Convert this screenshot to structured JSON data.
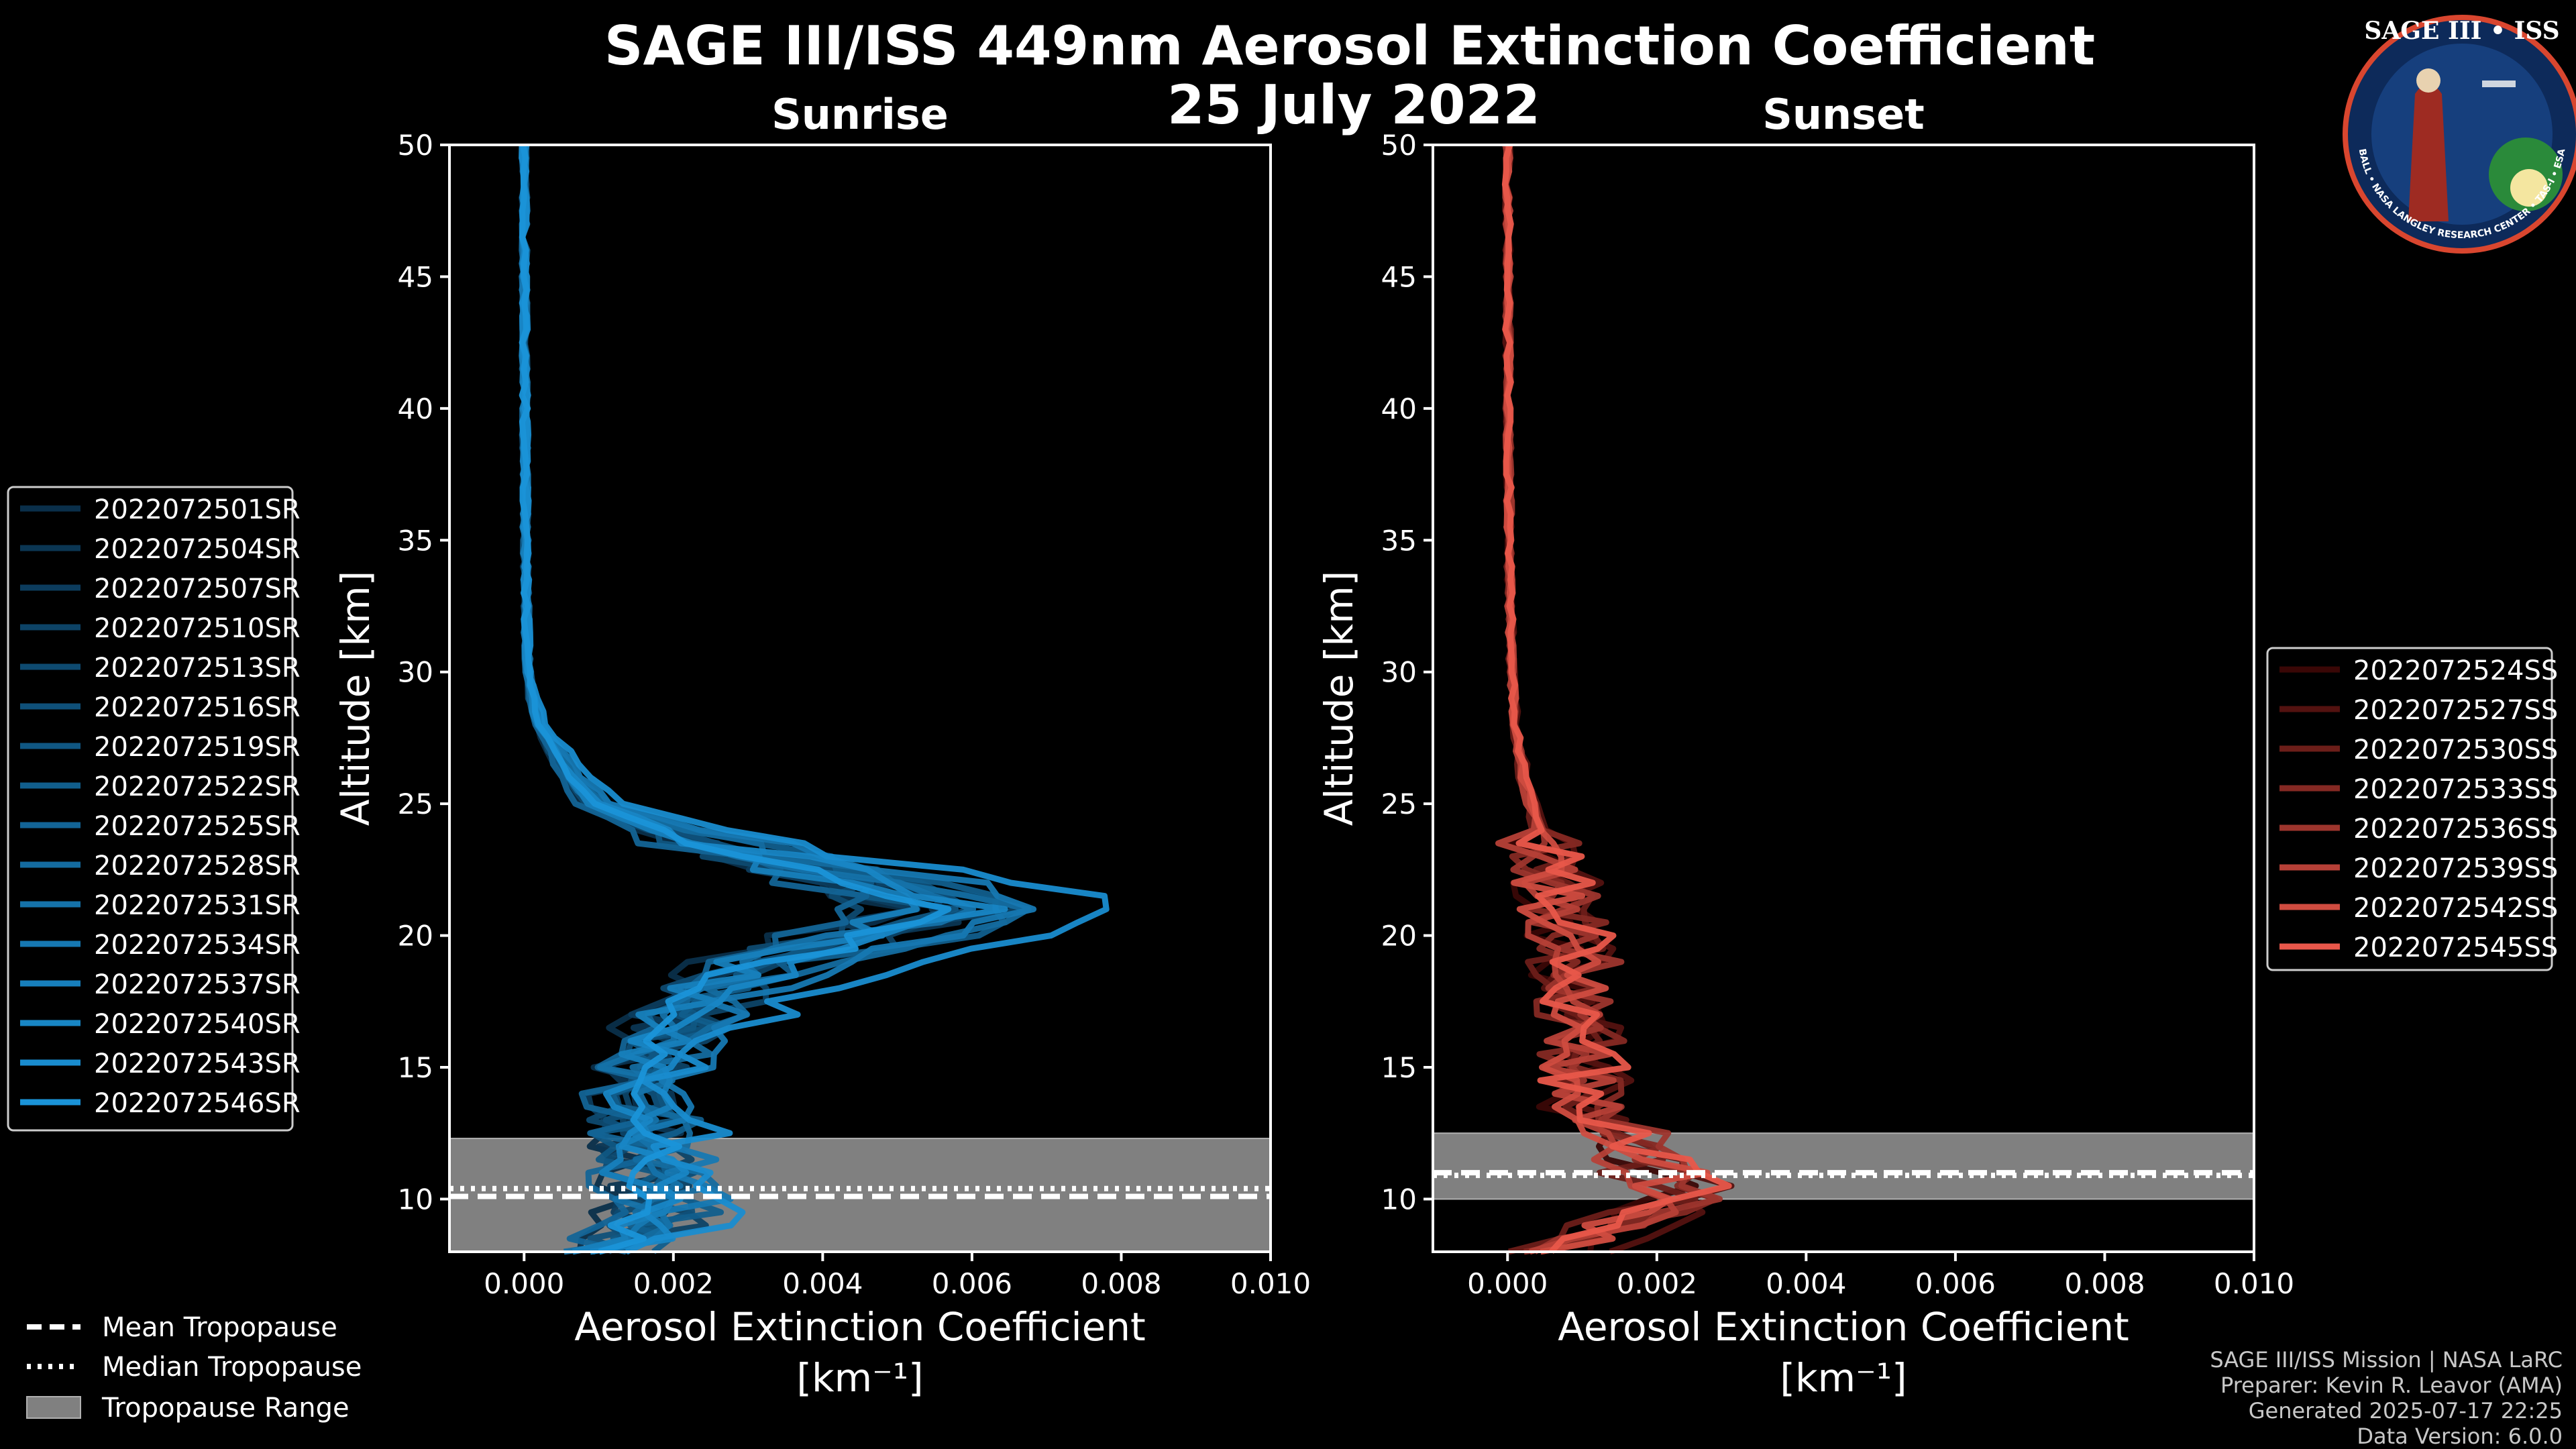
{
  "title": "SAGE III/ISS 449nm Aerosol Extinction Coefficient",
  "date": "25 July 2022",
  "logo": {
    "top_text": "SAGE III • ISS",
    "ring_text": "BALL • NASA LANGLEY RESEARCH CENTER • TAS-I • ESA"
  },
  "credits": [
    "SAGE III/ISS Mission | NASA LaRC",
    "Preparer: Kevin R. Leavor (AMA)",
    "Generated 2025-07-17 22:25",
    "Data Version: 6.0.0"
  ],
  "tropopause_legend": [
    {
      "label": "Mean Tropopause",
      "style": "dashed"
    },
    {
      "label": "Median Tropopause",
      "style": "dotted"
    },
    {
      "label": "Tropopause Range",
      "style": "band"
    }
  ],
  "chart_data": [
    {
      "type": "line",
      "title": "Sunrise",
      "xlabel": "Aerosol Extinction Coefficient",
      "xunit": "[km⁻¹]",
      "ylabel": "Altitude [km]",
      "xlim": [
        -0.001,
        0.01
      ],
      "ylim": [
        8,
        50
      ],
      "xticks": [
        0.0,
        0.002,
        0.004,
        0.006,
        0.008,
        0.01
      ],
      "xtick_labels": [
        "0.000",
        "0.002",
        "0.004",
        "0.006",
        "0.008",
        "0.010"
      ],
      "yticks": [
        10,
        15,
        20,
        25,
        30,
        35,
        40,
        45,
        50
      ],
      "tropopause": {
        "mean": 10.1,
        "median": 10.4,
        "range": [
          8.0,
          12.3
        ]
      },
      "color_dark": "#0a2f4a",
      "color_light": "#1a93d8",
      "base_profile": {
        "alt": [
          8,
          9,
          10,
          11,
          12,
          13,
          14,
          15,
          16,
          17,
          18,
          19,
          20,
          21,
          22,
          23,
          24,
          25,
          26,
          27,
          28,
          29,
          30,
          32,
          35,
          40,
          45,
          50
        ],
        "ext": [
          0.001,
          0.0016,
          0.0017,
          0.0016,
          0.0015,
          0.0015,
          0.0014,
          0.0015,
          0.0018,
          0.0021,
          0.0025,
          0.0032,
          0.0045,
          0.0055,
          0.0046,
          0.003,
          0.0018,
          0.0009,
          0.0006,
          0.0004,
          0.0002,
          0.0001,
          5e-05,
          3e-05,
          2e-05,
          1e-05,
          5e-06,
          3e-06
        ]
      },
      "series": [
        {
          "name": "2022072501SR",
          "scale": 0.85
        },
        {
          "name": "2022072504SR",
          "scale": 1.05
        },
        {
          "name": "2022072507SR",
          "scale": 0.95
        },
        {
          "name": "2022072510SR",
          "scale": 1.15
        },
        {
          "name": "2022072513SR",
          "scale": 0.9
        },
        {
          "name": "2022072516SR",
          "scale": 1.1
        },
        {
          "name": "2022072519SR",
          "scale": 1.0
        },
        {
          "name": "2022072522SR",
          "scale": 1.25
        },
        {
          "name": "2022072525SR",
          "scale": 0.8
        },
        {
          "name": "2022072528SR",
          "scale": 1.2
        },
        {
          "name": "2022072531SR",
          "scale": 1.0
        },
        {
          "name": "2022072534SR",
          "scale": 1.3
        },
        {
          "name": "2022072537SR",
          "scale": 0.95
        },
        {
          "name": "2022072540SR",
          "scale": 1.1
        },
        {
          "name": "2022072543SR",
          "scale": 1.5
        },
        {
          "name": "2022072546SR",
          "scale": 1.05
        }
      ]
    },
    {
      "type": "line",
      "title": "Sunset",
      "xlabel": "Aerosol Extinction Coefficient",
      "xunit": "[km⁻¹]",
      "ylabel": "Altitude [km]",
      "xlim": [
        -0.001,
        0.01
      ],
      "ylim": [
        8,
        50
      ],
      "xticks": [
        0.0,
        0.002,
        0.004,
        0.006,
        0.008,
        0.01
      ],
      "xtick_labels": [
        "0.000",
        "0.002",
        "0.004",
        "0.006",
        "0.008",
        "0.010"
      ],
      "yticks": [
        10,
        15,
        20,
        25,
        30,
        35,
        40,
        45,
        50
      ],
      "tropopause": {
        "mean": 11.0,
        "median": 10.9,
        "range": [
          10.0,
          12.5
        ]
      },
      "color_dark": "#3a0706",
      "color_light": "#e8574a",
      "base_profile": {
        "alt": [
          8,
          9,
          10,
          11,
          12,
          13,
          14,
          15,
          16,
          17,
          18,
          19,
          20,
          21,
          22,
          23,
          24,
          25,
          26,
          28,
          30,
          35,
          40,
          45,
          50
        ],
        "ext": [
          0.0006,
          0.0014,
          0.0022,
          0.002,
          0.0016,
          0.0011,
          0.0009,
          0.0009,
          0.0009,
          0.0009,
          0.0008,
          0.0008,
          0.0008,
          0.0007,
          0.0006,
          0.0005,
          0.0004,
          0.0003,
          0.0002,
          0.0001,
          5e-05,
          2e-05,
          1e-05,
          5e-06,
          3e-06
        ]
      },
      "series": [
        {
          "name": "2022072524SS",
          "scale": 1.0
        },
        {
          "name": "2022072527SS",
          "scale": 1.3
        },
        {
          "name": "2022072530SS",
          "scale": 0.9
        },
        {
          "name": "2022072533SS",
          "scale": 1.1
        },
        {
          "name": "2022072536SS",
          "scale": 1.2
        },
        {
          "name": "2022072539SS",
          "scale": 0.95
        },
        {
          "name": "2022072542SS",
          "scale": 1.05
        },
        {
          "name": "2022072545SS",
          "scale": 1.15
        }
      ]
    }
  ]
}
